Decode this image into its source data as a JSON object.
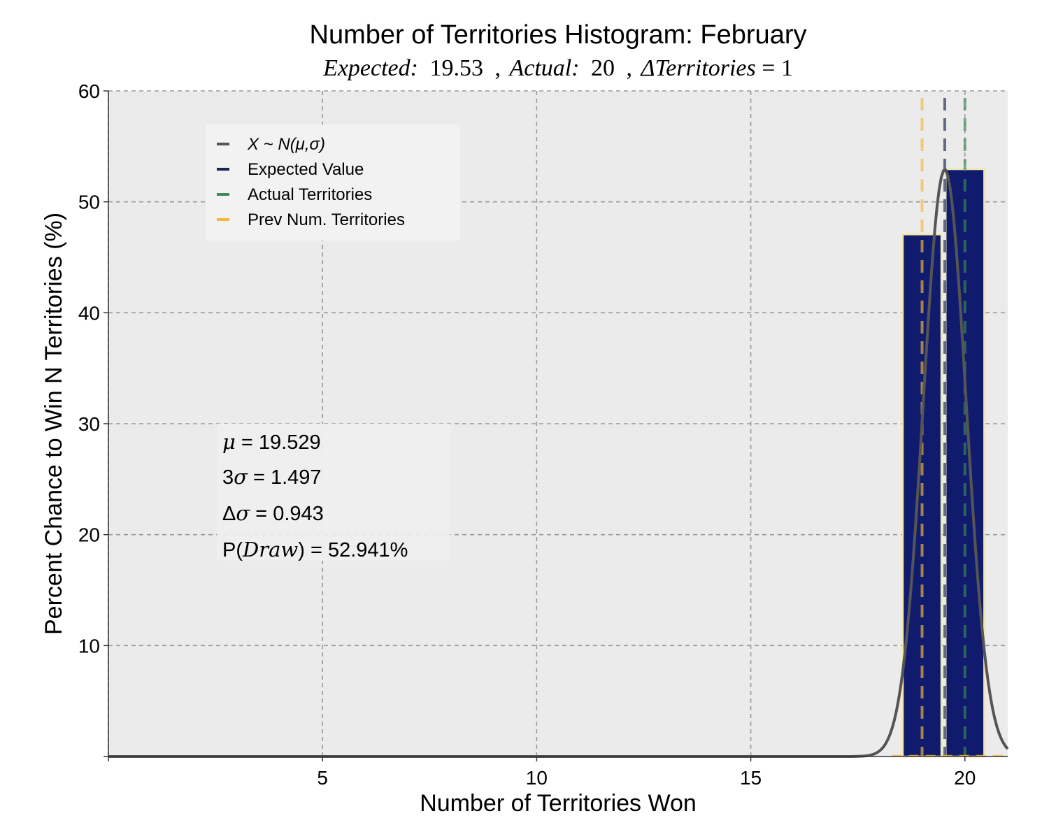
{
  "chart_data": {
    "type": "bar",
    "title": "Number of Territories Histogram: February",
    "subtitle": {
      "expected_label": "Expected:",
      "expected_value": "19.53",
      "actual_label": "Actual:",
      "actual_value": "20",
      "delta_label": "ΔTerritories",
      "delta_value": "= 1",
      "sep": ","
    },
    "xlabel": "Number of Territories Won",
    "ylabel": "Percent Chance to Win N Territories (%)",
    "xlim": [
      0,
      21
    ],
    "ylim": [
      0,
      60
    ],
    "xticks": [
      5,
      10,
      15,
      20
    ],
    "yticks": [
      10,
      20,
      30,
      40,
      50,
      60
    ],
    "grid": true,
    "bars": {
      "x": [
        19,
        20
      ],
      "values": [
        47.06,
        52.94
      ],
      "width": 0.9,
      "color": "#111b6e",
      "edgecolor": "#f0e6a8"
    },
    "normal_curve": {
      "name": "X ~ N(μ,σ)",
      "mu": 19.529,
      "sigma": 0.499,
      "peak": 52.9,
      "color": "#555555"
    },
    "vlines": [
      {
        "name": "Prev Num. Territories",
        "x": 19,
        "color": "#f5b93a"
      },
      {
        "name": "Expected Value",
        "x": 19.53,
        "color": "#1a2550"
      },
      {
        "name": "Actual Territories",
        "x": 20,
        "color": "#3c8a55"
      }
    ],
    "legend": {
      "placement": "upper-left",
      "entries": [
        {
          "label": "X ~ N(μ,σ)",
          "color": "#555555",
          "italic": true
        },
        {
          "label": "Expected Value",
          "color": "#1a2550",
          "italic": false
        },
        {
          "label": "Actual Territories",
          "color": "#3c8a55",
          "italic": false
        },
        {
          "label": "Prev Num. Territories",
          "color": "#f5b93a",
          "italic": false
        }
      ]
    },
    "stats": {
      "mu_symbol": "μ",
      "mu_text": " = 19.529",
      "three_sigma_prefix": "3",
      "sigma_symbol": "σ",
      "three_sigma_text": " = 1.497",
      "delta_prefix": "Δ",
      "delta_sigma_text": " = 0.943",
      "p_prefix": "P(",
      "p_var": "Draw",
      "p_text": ") = 52.941%"
    }
  }
}
